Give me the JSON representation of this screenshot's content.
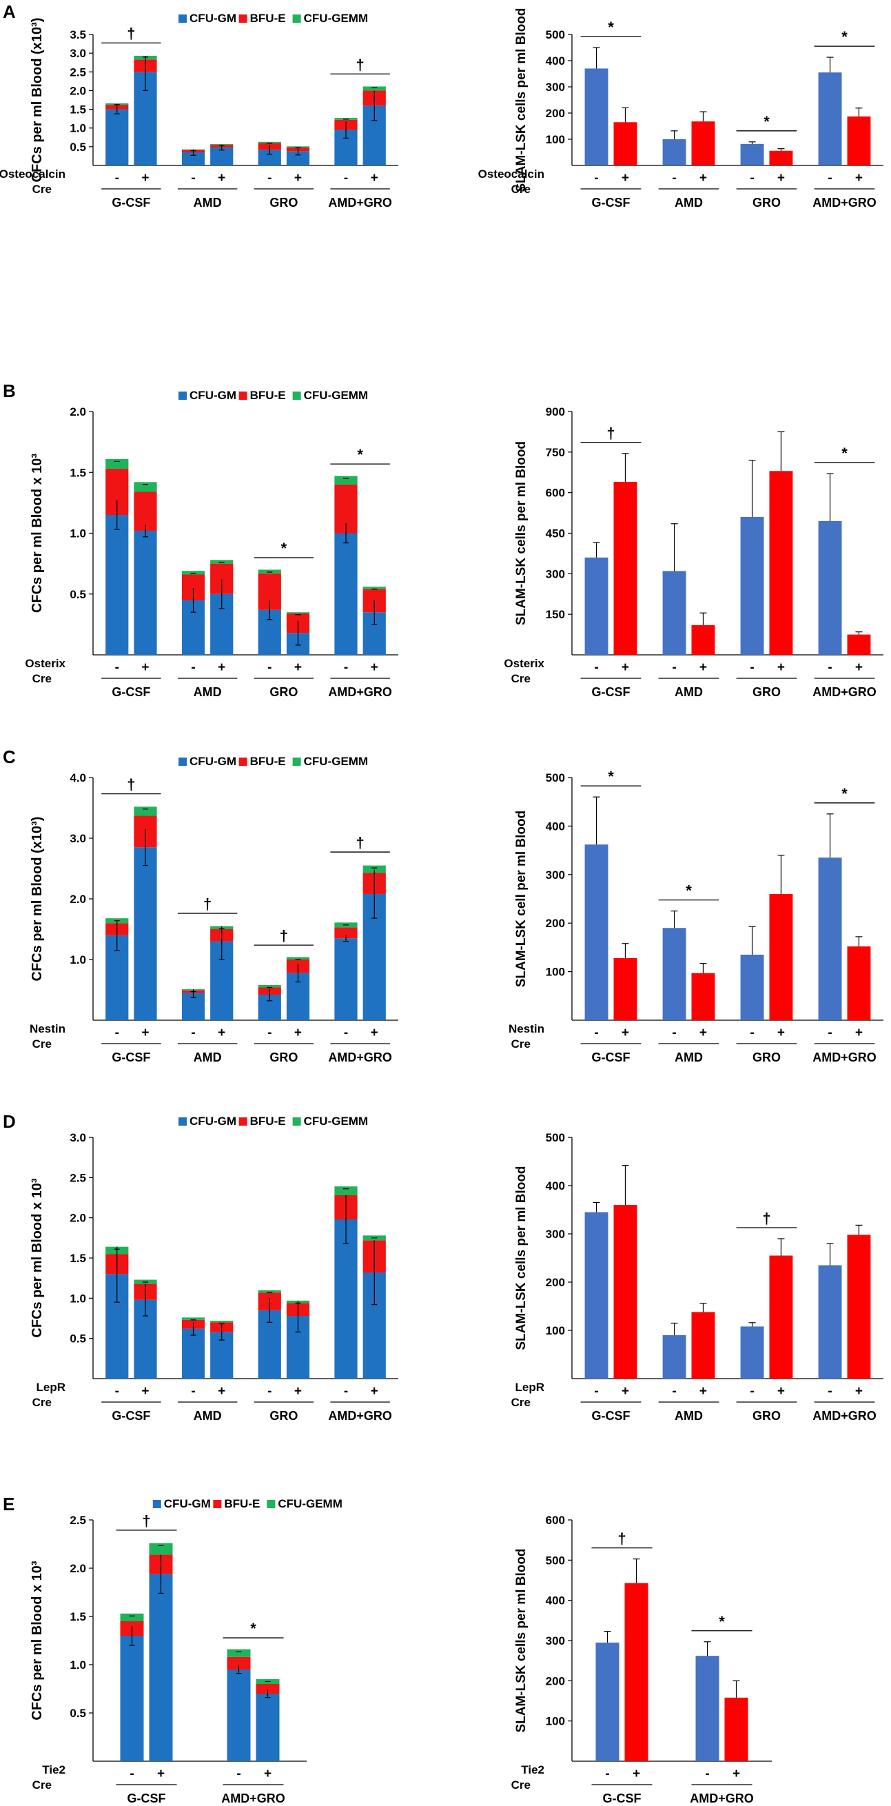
{
  "figure": {
    "panels": [
      {
        "label": "A",
        "gene": "Osteocalcin",
        "cre": "Cre"
      },
      {
        "label": "B",
        "gene": "Osterix",
        "cre": "Cre"
      },
      {
        "label": "C",
        "gene": "Nestin",
        "cre": "Cre"
      },
      {
        "label": "D",
        "gene": "LepR",
        "cre": "Cre"
      },
      {
        "label": "E",
        "gene": "Tie2",
        "cre": "Cre"
      }
    ]
  },
  "chart_data": [
    {
      "panel": "A",
      "side": "left",
      "type": "bar",
      "stacked": true,
      "ylabel": "CFCs per ml Blood (x10³)",
      "ylim": [
        0,
        3.5
      ],
      "yticks": [
        "0.5",
        "1.0",
        "1.5",
        "2.0",
        "2.5",
        "3.0",
        "3.5"
      ],
      "groups": [
        "G-CSF",
        "AMD",
        "GRO",
        "AMD+GRO"
      ],
      "genotype_marks": [
        "-",
        "+"
      ],
      "legend": [
        "CFU-GM",
        "BFU-E",
        "CFU-GEMM"
      ],
      "colors": [
        "#1f72c1",
        "#f01414",
        "#1fb35a"
      ],
      "series": [
        {
          "name": "CFU-GM",
          "values": [
            1.5,
            2.5,
            0.35,
            0.48,
            0.42,
            0.38,
            0.95,
            1.6
          ]
        },
        {
          "name": "BFU-E",
          "values": [
            0.12,
            0.33,
            0.06,
            0.07,
            0.17,
            0.1,
            0.27,
            0.4
          ]
        },
        {
          "name": "CFU-GEMM",
          "values": [
            0.04,
            0.1,
            0.02,
            0.02,
            0.04,
            0.03,
            0.05,
            0.11
          ]
        }
      ],
      "errors": [
        0.12,
        0.5,
        0.08,
        0.07,
        0.12,
        0.1,
        0.22,
        0.4
      ],
      "significance": [
        {
          "bars": [
            0,
            1
          ],
          "mark": "†"
        },
        {
          "bars": [
            6,
            7
          ],
          "mark": "†"
        }
      ]
    },
    {
      "panel": "A",
      "side": "right",
      "type": "bar",
      "ylabel": "SLAM-LSK cells per ml Blood",
      "ylim": [
        0,
        500
      ],
      "yticks": [
        "100",
        "200",
        "300",
        "400",
        "500"
      ],
      "groups": [
        "G-CSF",
        "AMD",
        "GRO",
        "AMD+GRO"
      ],
      "genotype_marks": [
        "-",
        "+"
      ],
      "colors": [
        "#4472c4",
        "#ff0000"
      ],
      "values": [
        370,
        165,
        100,
        168,
        82,
        56,
        355,
        187
      ],
      "errors": [
        80,
        55,
        32,
        37,
        8,
        8,
        58,
        32
      ],
      "significance": [
        {
          "bars": [
            0,
            1
          ],
          "mark": "*"
        },
        {
          "bars": [
            4,
            5
          ],
          "mark": "*"
        },
        {
          "bars": [
            6,
            7
          ],
          "mark": "*"
        }
      ]
    },
    {
      "panel": "B",
      "side": "left",
      "type": "bar",
      "stacked": true,
      "ylabel": "CFCs per ml Blood x 10³",
      "ylim": [
        0,
        2.0
      ],
      "yticks": [
        "0.5",
        "1.0",
        "1.5",
        "2.0"
      ],
      "groups": [
        "G-CSF",
        "AMD",
        "GRO",
        "AMD+GRO"
      ],
      "genotype_marks": [
        "-",
        "+"
      ],
      "legend": [
        "CFU-GM",
        "BFU-E",
        "CFU-GEMM"
      ],
      "colors": [
        "#1f72c1",
        "#f01414",
        "#1fb35a"
      ],
      "series": [
        {
          "name": "CFU-GM",
          "values": [
            1.15,
            1.02,
            0.45,
            0.5,
            0.37,
            0.18,
            1.0,
            0.35
          ]
        },
        {
          "name": "BFU-E",
          "values": [
            0.38,
            0.32,
            0.21,
            0.25,
            0.3,
            0.16,
            0.4,
            0.19
          ]
        },
        {
          "name": "CFU-GEMM",
          "values": [
            0.08,
            0.08,
            0.03,
            0.03,
            0.03,
            0.01,
            0.07,
            0.02
          ]
        }
      ],
      "errors": [
        0.12,
        0.05,
        0.1,
        0.12,
        0.08,
        0.1,
        0.08,
        0.1
      ],
      "significance": [
        {
          "bars": [
            4,
            5
          ],
          "mark": "*"
        },
        {
          "bars": [
            6,
            7
          ],
          "mark": "*"
        }
      ]
    },
    {
      "panel": "B",
      "side": "right",
      "type": "bar",
      "ylabel": "SLAM-LSK cells per ml Blood",
      "ylim": [
        0,
        900
      ],
      "yticks": [
        "150",
        "300",
        "450",
        "600",
        "750",
        "900"
      ],
      "groups": [
        "G-CSF",
        "AMD",
        "GRO",
        "AMD+GRO"
      ],
      "genotype_marks": [
        "-",
        "+"
      ],
      "colors": [
        "#4472c4",
        "#ff0000"
      ],
      "values": [
        360,
        640,
        310,
        110,
        510,
        680,
        495,
        75
      ],
      "errors": [
        55,
        105,
        175,
        45,
        210,
        145,
        175,
        10
      ],
      "significance": [
        {
          "bars": [
            0,
            1
          ],
          "mark": "†"
        },
        {
          "bars": [
            6,
            7
          ],
          "mark": "*"
        }
      ]
    },
    {
      "panel": "C",
      "side": "left",
      "type": "bar",
      "stacked": true,
      "ylabel": "CFCs per ml  Blood (x10³)",
      "ylim": [
        0,
        4.0
      ],
      "yticks": [
        "1.0",
        "2.0",
        "3.0",
        "4.0"
      ],
      "groups": [
        "G-CSF",
        "AMD",
        "GRO",
        "AMD+GRO"
      ],
      "genotype_marks": [
        "-",
        "+"
      ],
      "legend": [
        "CFU-GM",
        "BFU-E",
        "CFU-GEMM"
      ],
      "colors": [
        "#1f72c1",
        "#f01414",
        "#1fb35a"
      ],
      "series": [
        {
          "name": "CFU-GM",
          "values": [
            1.4,
            2.85,
            0.45,
            1.3,
            0.42,
            0.78,
            1.35,
            2.08
          ]
        },
        {
          "name": "BFU-E",
          "values": [
            0.2,
            0.52,
            0.04,
            0.2,
            0.12,
            0.22,
            0.18,
            0.35
          ]
        },
        {
          "name": "CFU-GEMM",
          "values": [
            0.08,
            0.15,
            0.02,
            0.05,
            0.04,
            0.04,
            0.08,
            0.12
          ]
        }
      ],
      "errors": [
        0.25,
        0.3,
        0.08,
        0.3,
        0.1,
        0.15,
        0.05,
        0.4
      ],
      "significance": [
        {
          "bars": [
            0,
            1
          ],
          "mark": "†"
        },
        {
          "bars": [
            2,
            3
          ],
          "mark": "†"
        },
        {
          "bars": [
            4,
            5
          ],
          "mark": "†"
        },
        {
          "bars": [
            6,
            7
          ],
          "mark": "†"
        }
      ]
    },
    {
      "panel": "C",
      "side": "right",
      "type": "bar",
      "ylabel": "SLAM-LSK cell per ml Blood",
      "ylim": [
        0,
        500
      ],
      "yticks": [
        "100",
        "200",
        "300",
        "400",
        "500"
      ],
      "groups": [
        "G-CSF",
        "AMD",
        "GRO",
        "AMD+GRO"
      ],
      "genotype_marks": [
        "-",
        "+"
      ],
      "colors": [
        "#4472c4",
        "#ff0000"
      ],
      "values": [
        362,
        128,
        190,
        97,
        135,
        260,
        335,
        152
      ],
      "errors": [
        98,
        30,
        35,
        20,
        58,
        80,
        90,
        20
      ],
      "significance": [
        {
          "bars": [
            0,
            1
          ],
          "mark": "*"
        },
        {
          "bars": [
            2,
            3
          ],
          "mark": "*"
        },
        {
          "bars": [
            6,
            7
          ],
          "mark": "*"
        }
      ]
    },
    {
      "panel": "D",
      "side": "left",
      "type": "bar",
      "stacked": true,
      "ylabel": "CFCs per ml Blood x 10³",
      "ylim": [
        0,
        3.0
      ],
      "yticks": [
        "0.5",
        "1.0",
        "1.5",
        "2.0",
        "2.5",
        "3.0"
      ],
      "groups": [
        "G-CSF",
        "AMD",
        "GRO",
        "AMD+GRO"
      ],
      "genotype_marks": [
        "-",
        "+"
      ],
      "legend": [
        "CFU-GM",
        "BFU-E",
        "CFU-GEMM"
      ],
      "colors": [
        "#1f72c1",
        "#f01414",
        "#1fb35a"
      ],
      "series": [
        {
          "name": "CFU-GM",
          "values": [
            1.3,
            0.98,
            0.62,
            0.58,
            0.85,
            0.78,
            1.98,
            1.32
          ]
        },
        {
          "name": "BFU-E",
          "values": [
            0.25,
            0.2,
            0.11,
            0.12,
            0.22,
            0.16,
            0.3,
            0.4
          ]
        },
        {
          "name": "CFU-GEMM",
          "values": [
            0.09,
            0.05,
            0.03,
            0.02,
            0.03,
            0.03,
            0.11,
            0.06
          ]
        }
      ],
      "errors": [
        0.35,
        0.2,
        0.08,
        0.1,
        0.15,
        0.2,
        0.3,
        0.4
      ],
      "significance": []
    },
    {
      "panel": "D",
      "side": "right",
      "type": "bar",
      "ylabel": "SLAM-LSK cells per ml Blood",
      "ylim": [
        0,
        500
      ],
      "yticks": [
        "100",
        "200",
        "300",
        "400",
        "500"
      ],
      "groups": [
        "G-CSF",
        "AMD",
        "GRO",
        "AMD+GRO"
      ],
      "genotype_marks": [
        "-",
        "+"
      ],
      "colors": [
        "#4472c4",
        "#ff0000"
      ],
      "values": [
        345,
        360,
        90,
        138,
        108,
        255,
        235,
        298
      ],
      "errors": [
        20,
        82,
        25,
        18,
        8,
        35,
        45,
        20
      ],
      "significance": [
        {
          "bars": [
            4,
            5
          ],
          "mark": "†"
        }
      ]
    },
    {
      "panel": "E",
      "side": "left",
      "type": "bar",
      "stacked": true,
      "ylabel": "CFCs per ml Blood x 10³",
      "ylim": [
        0,
        2.5
      ],
      "yticks": [
        "0.5",
        "1.0",
        "1.5",
        "2.0",
        "2.5"
      ],
      "groups": [
        "G-CSF",
        "AMD+GRO"
      ],
      "genotype_marks": [
        "-",
        "+"
      ],
      "legend": [
        "CFU-GM",
        "BFU-E",
        "CFU-GEMM"
      ],
      "colors": [
        "#1f72c1",
        "#f01414",
        "#1fb35a"
      ],
      "series": [
        {
          "name": "CFU-GM",
          "values": [
            1.3,
            1.94,
            0.95,
            0.7
          ]
        },
        {
          "name": "BFU-E",
          "values": [
            0.15,
            0.2,
            0.13,
            0.1
          ]
        },
        {
          "name": "CFU-GEMM",
          "values": [
            0.08,
            0.12,
            0.08,
            0.05
          ]
        }
      ],
      "errors": [
        0.1,
        0.2,
        0.04,
        0.04
      ],
      "significance": [
        {
          "bars": [
            0,
            1
          ],
          "mark": "†"
        },
        {
          "bars": [
            2,
            3
          ],
          "mark": "*"
        }
      ]
    },
    {
      "panel": "E",
      "side": "right",
      "type": "bar",
      "ylabel": "SLAM-LSK cells per ml Blood",
      "ylim": [
        0,
        600
      ],
      "yticks": [
        "100",
        "200",
        "300",
        "400",
        "500",
        "600"
      ],
      "groups": [
        "G-CSF",
        "AMD+GRO"
      ],
      "genotype_marks": [
        "-",
        "+"
      ],
      "colors": [
        "#4472c4",
        "#ff0000"
      ],
      "values": [
        295,
        443,
        262,
        158
      ],
      "errors": [
        28,
        60,
        35,
        42
      ],
      "significance": [
        {
          "bars": [
            0,
            1
          ],
          "mark": "†"
        },
        {
          "bars": [
            2,
            3
          ],
          "mark": "*"
        }
      ]
    }
  ]
}
